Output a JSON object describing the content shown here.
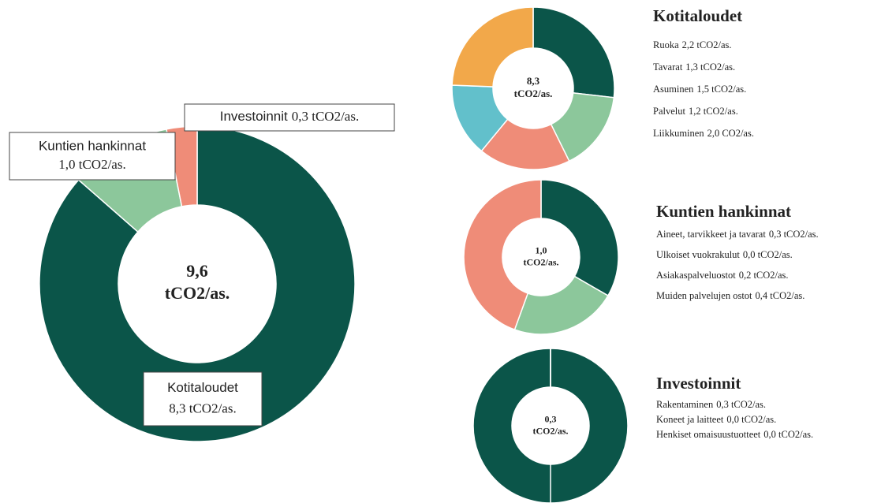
{
  "chart_data": [
    {
      "type": "pie",
      "donut": true,
      "categories": [
        "Kotitaloudet",
        "Kuntien hankinnat",
        "Investoinnit"
      ],
      "values": [
        8.3,
        1.0,
        0.3
      ],
      "value_labels": [
        "8,3 tCO2/as.",
        "1,0 tCO2/as.",
        "0,3 tCO2/as."
      ],
      "colors": [
        "#0b5549",
        "#8cc79b",
        "#ef8c78"
      ],
      "center_label": [
        "9,6",
        "tCO2/as."
      ]
    },
    {
      "type": "pie",
      "donut": true,
      "title": "Kotitaloudet",
      "categories": [
        "Ruoka",
        "Tavarat",
        "Asuminen",
        "Palvelut",
        "Liikkuminen"
      ],
      "values": [
        2.2,
        1.3,
        1.5,
        1.2,
        2.0
      ],
      "value_labels": [
        "2,2 tCO2/as.",
        "1,3 tCO2/as.",
        "1,5 tCO2/as.",
        "1,2 tCO2/as.",
        "2,0 CO2/as."
      ],
      "colors": [
        "#0b5549",
        "#8cc79b",
        "#ef8c78",
        "#62c0cb",
        "#f2a84a"
      ],
      "center_label": [
        "8,3",
        "tCO2/as."
      ]
    },
    {
      "type": "pie",
      "donut": true,
      "title": "Kuntien hankinnat",
      "categories": [
        "Aineet, tarvikkeet ja tavarat",
        "Ulkoiset vuokrakulut",
        "Asiakaspalveluostot",
        "Muiden palvelujen ostot"
      ],
      "values": [
        0.3,
        0.0,
        0.2,
        0.4
      ],
      "value_labels": [
        "0,3 tCO2/as.",
        "0,0 tCO2/as.",
        "0,2 tCO2/as.",
        "0,4 tCO2/as."
      ],
      "colors": [
        "#0b5549",
        "#62c0cb",
        "#8cc79b",
        "#ef8c78"
      ],
      "center_label": [
        "1,0",
        "tCO2/as."
      ]
    },
    {
      "type": "pie",
      "donut": true,
      "title": "Investoinnit",
      "categories": [
        "Rakentaminen",
        "Koneet ja laitteet",
        "Henkiset omaisuustuotteet"
      ],
      "values": [
        0.3,
        0.0,
        0.0
      ],
      "value_labels": [
        "0,3 tCO2/as.",
        "0,0 tCO2/as.",
        "0,0 tCO2/as."
      ],
      "colors": [
        "#0b5549",
        "#8cc79b",
        "#ef8c78"
      ],
      "center_label": [
        "0,3",
        "tCO2/as."
      ]
    }
  ]
}
